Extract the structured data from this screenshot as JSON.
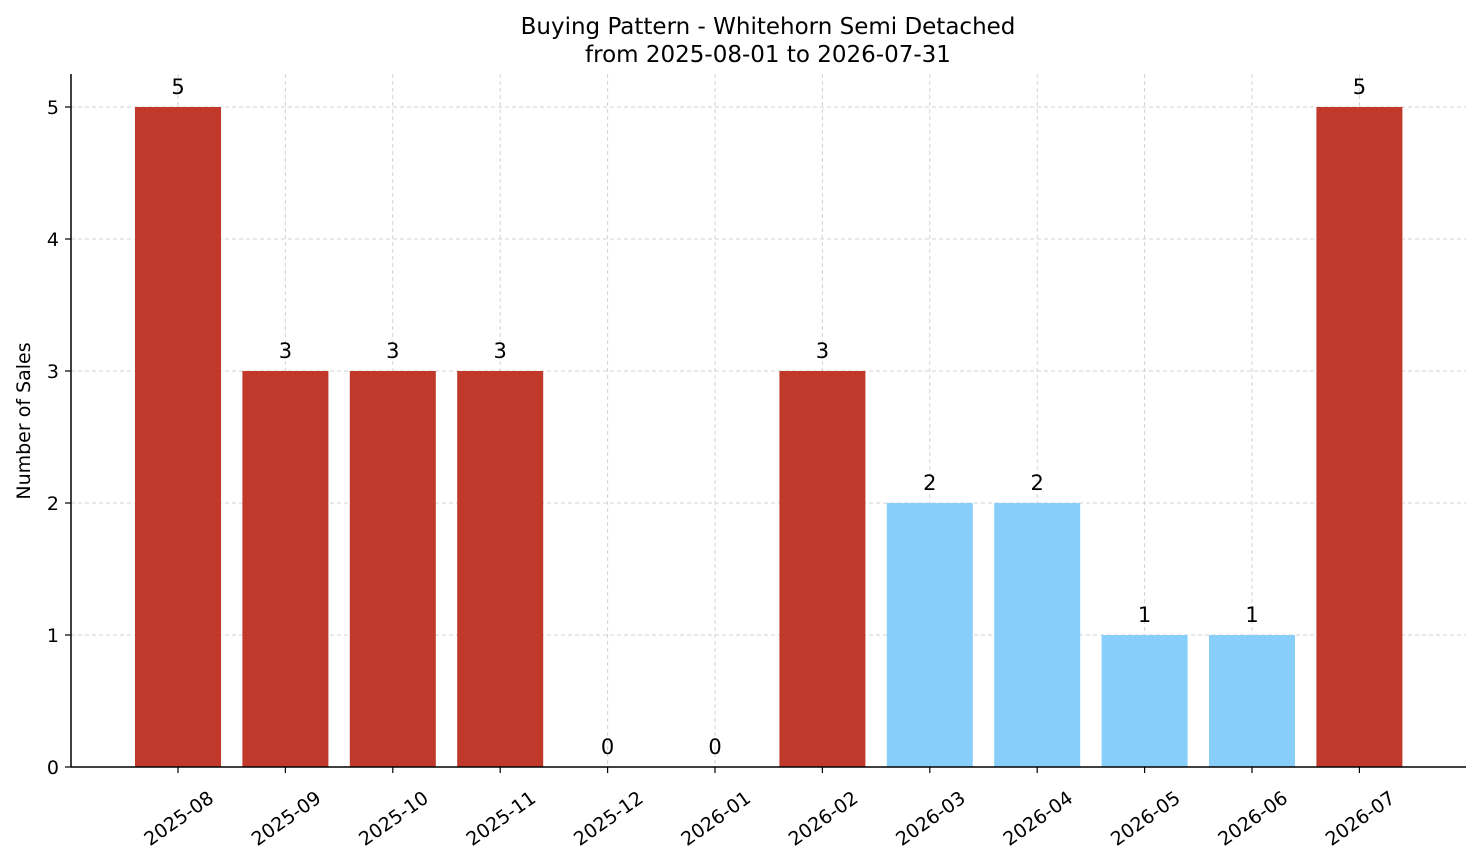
{
  "chart_data": {
    "type": "bar",
    "title": "Buying Pattern - Whitehorn Semi Detached",
    "subtitle": "from 2025-08-01 to 2026-07-31",
    "xlabel": "",
    "ylabel": "Number of Sales",
    "categories": [
      "2025-08",
      "2025-09",
      "2025-10",
      "2025-11",
      "2025-12",
      "2026-01",
      "2026-02",
      "2026-03",
      "2026-04",
      "2026-05",
      "2026-06",
      "2026-07"
    ],
    "values": [
      5,
      3,
      3,
      3,
      0,
      0,
      3,
      2,
      2,
      1,
      1,
      5
    ],
    "bar_colors": [
      "#c0392b",
      "#c0392b",
      "#c0392b",
      "#c0392b",
      "#c0392b",
      "#c0392b",
      "#c0392b",
      "#87cefa",
      "#87cefa",
      "#87cefa",
      "#87cefa",
      "#c0392b"
    ],
    "yticks": [
      0,
      1,
      2,
      3,
      4,
      5
    ],
    "ylim": [
      0,
      5.25
    ],
    "grid": true,
    "data_labels": true
  }
}
